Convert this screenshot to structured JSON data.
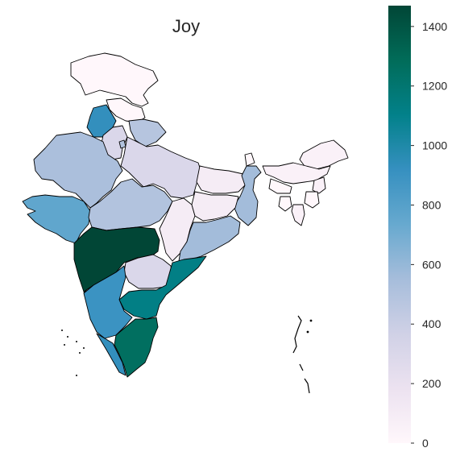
{
  "title": "Joy",
  "colorbar": {
    "colormap": "PuBuGn",
    "min": 0,
    "max": 1470,
    "ticks": [
      0,
      200,
      400,
      600,
      800,
      1000,
      1200,
      1400
    ],
    "stops": [
      "#fff7fb",
      "#ece2f0",
      "#d0d1e6",
      "#a6bddb",
      "#67a9cf",
      "#3690c0",
      "#02818a",
      "#016c59",
      "#014636"
    ]
  },
  "regions": [
    {
      "name": "Jammu and Kashmir",
      "value": 0
    },
    {
      "name": "Himachal Pradesh",
      "value": 0
    },
    {
      "name": "Punjab",
      "value": 930
    },
    {
      "name": "Uttarakhand",
      "value": 480
    },
    {
      "name": "Haryana",
      "value": 300
    },
    {
      "name": "Delhi",
      "value": 500
    },
    {
      "name": "Rajasthan",
      "value": 530
    },
    {
      "name": "Uttar Pradesh",
      "value": 300
    },
    {
      "name": "Bihar",
      "value": 100
    },
    {
      "name": "Sikkim",
      "value": 0
    },
    {
      "name": "Arunachal Pradesh",
      "value": 50
    },
    {
      "name": "Assam",
      "value": 50
    },
    {
      "name": "Meghalaya",
      "value": 0
    },
    {
      "name": "Nagaland",
      "value": 50
    },
    {
      "name": "Manipur",
      "value": 0
    },
    {
      "name": "Mizoram",
      "value": 50
    },
    {
      "name": "Tripura",
      "value": 0
    },
    {
      "name": "West Bengal",
      "value": 560
    },
    {
      "name": "Jharkhand",
      "value": 100
    },
    {
      "name": "Odisha",
      "value": 560
    },
    {
      "name": "Chhattisgarh",
      "value": 100
    },
    {
      "name": "Madhya Pradesh",
      "value": 500
    },
    {
      "name": "Gujarat",
      "value": 760
    },
    {
      "name": "Maharashtra",
      "value": 1470
    },
    {
      "name": "Telangana",
      "value": 300
    },
    {
      "name": "Andhra Pradesh",
      "value": 1120
    },
    {
      "name": "Karnataka",
      "value": 900
    },
    {
      "name": "Goa",
      "value": 1470
    },
    {
      "name": "Kerala",
      "value": 930
    },
    {
      "name": "Tamil Nadu",
      "value": 1260
    }
  ]
}
